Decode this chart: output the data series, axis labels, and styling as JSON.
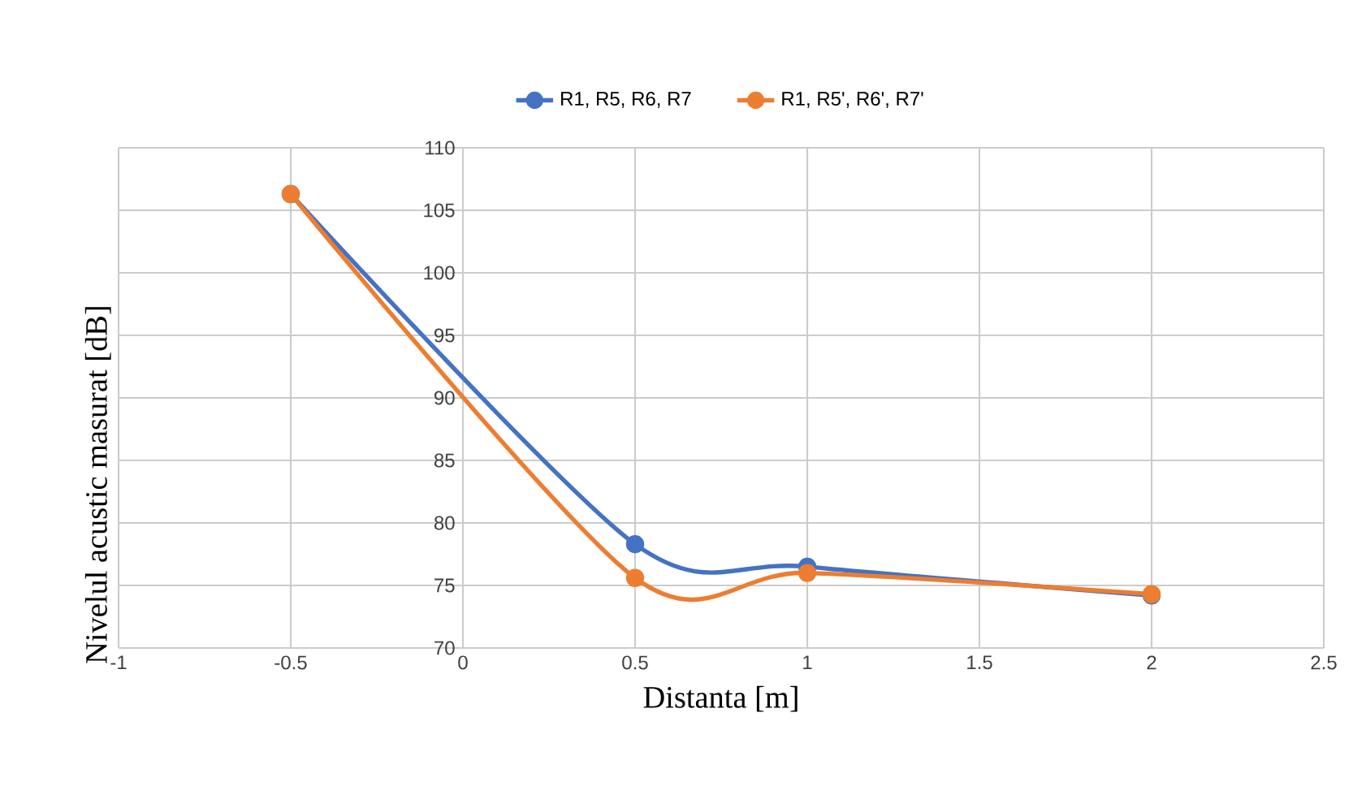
{
  "chart_data": {
    "type": "line",
    "xlabel": "Distanta [m]",
    "ylabel": "Nivelul acustic masurat [dB]",
    "x": [
      -0.5,
      0.5,
      1,
      2
    ],
    "series": [
      {
        "name": "R1, R5, R6, R7",
        "color": "#4472c4",
        "values": [
          106.3,
          78.3,
          76.5,
          74.2
        ]
      },
      {
        "name": "R1, R5', R6', R7'",
        "color": "#ed7d31",
        "values": [
          106.3,
          75.6,
          76.0,
          74.3
        ]
      }
    ],
    "xlim": [
      -1,
      2.5
    ],
    "xticks": [
      -1,
      -0.5,
      0,
      0.5,
      1,
      1.5,
      2,
      2.5
    ],
    "ylim": [
      70,
      110
    ],
    "yticks": [
      70,
      75,
      80,
      85,
      90,
      95,
      100,
      105,
      110
    ],
    "grid": true,
    "legend": "top",
    "marker": "circle"
  }
}
